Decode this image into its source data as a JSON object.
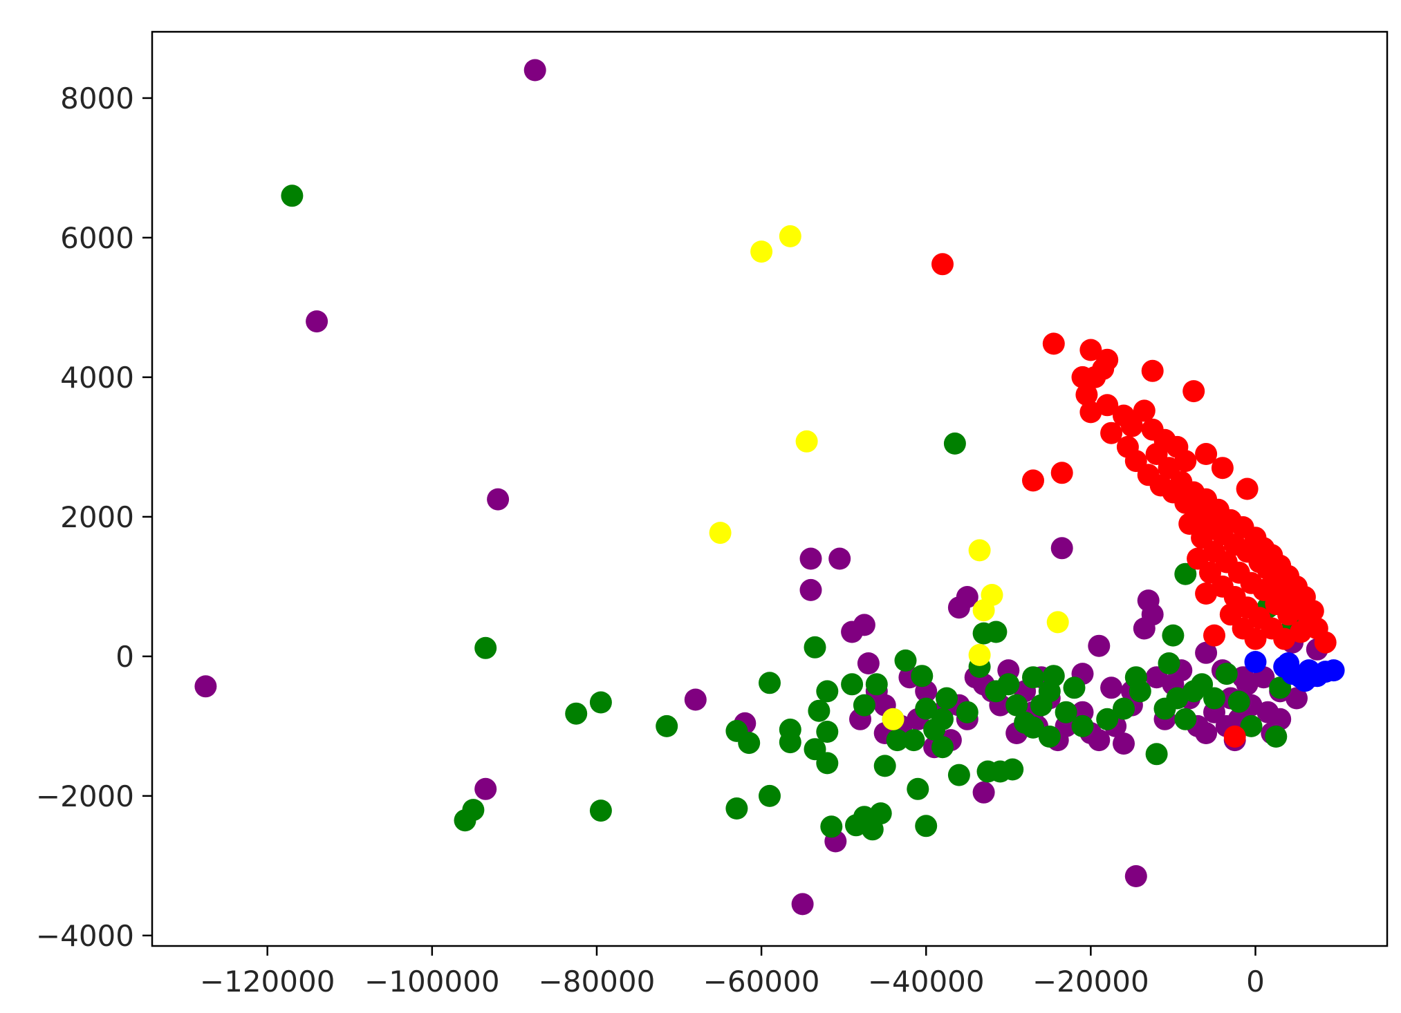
{
  "chart_data": {
    "type": "scatter",
    "title": "",
    "xlabel": "",
    "ylabel": "",
    "xlim": [
      -134000,
      16000
    ],
    "ylim": [
      -4150,
      8950
    ],
    "grid": false,
    "legend": "none",
    "x_ticks": [
      -120000,
      -100000,
      -80000,
      -60000,
      -40000,
      -20000,
      0
    ],
    "x_tick_labels": [
      "−120000",
      "−100000",
      "−80000",
      "−60000",
      "−40000",
      "−20000",
      "0"
    ],
    "y_ticks": [
      -4000,
      -2000,
      0,
      2000,
      4000,
      6000,
      8000
    ],
    "y_tick_labels": [
      "−4000",
      "−2000",
      "0",
      "2000",
      "4000",
      "6000",
      "8000"
    ],
    "series": [
      {
        "color": "#800080",
        "points": [
          [
            -87500,
            8400
          ],
          [
            -114000,
            4800
          ],
          [
            -127500,
            -430
          ],
          [
            -92000,
            2250
          ],
          [
            -93500,
            -1900
          ],
          [
            -54000,
            1400
          ],
          [
            -50500,
            1400
          ],
          [
            -54000,
            950
          ],
          [
            -49000,
            350
          ],
          [
            -47500,
            450
          ],
          [
            -47000,
            -100
          ],
          [
            -68000,
            -620
          ],
          [
            -62000,
            -960
          ],
          [
            -51000,
            -2650
          ],
          [
            -55000,
            -3550
          ],
          [
            -45000,
            -1100
          ],
          [
            -33000,
            -1950
          ],
          [
            -14500,
            -3150
          ],
          [
            -36000,
            700
          ],
          [
            -35000,
            850
          ],
          [
            -23500,
            1550
          ],
          [
            -13000,
            800
          ],
          [
            -12500,
            600
          ],
          [
            -13500,
            400
          ],
          [
            -19000,
            150
          ],
          [
            -21000,
            -250
          ],
          [
            -17500,
            -450
          ],
          [
            -15000,
            -700
          ],
          [
            -11000,
            -900
          ],
          [
            -7000,
            -1000
          ],
          [
            -5000,
            -800
          ],
          [
            -3000,
            -600
          ],
          [
            -1000,
            -400
          ],
          [
            1000,
            -300
          ],
          [
            3000,
            -500
          ],
          [
            5000,
            -600
          ],
          [
            6500,
            -300
          ],
          [
            7500,
            100
          ],
          [
            4500,
            200
          ],
          [
            -2500,
            -1200
          ],
          [
            -25000,
            -600
          ],
          [
            -27000,
            -800
          ],
          [
            -29000,
            -1100
          ],
          [
            -31000,
            -700
          ],
          [
            -33000,
            -400
          ],
          [
            -35000,
            -900
          ],
          [
            -37000,
            -1200
          ],
          [
            -39000,
            -1300
          ],
          [
            -41000,
            -900
          ],
          [
            -43000,
            -1000
          ],
          [
            -45000,
            -700
          ],
          [
            -46000,
            -500
          ],
          [
            -48000,
            -900
          ],
          [
            -23000,
            -1000
          ],
          [
            -21000,
            -800
          ],
          [
            -19000,
            -1200
          ],
          [
            -17000,
            -1000
          ],
          [
            -15000,
            -500
          ],
          [
            -9000,
            -200
          ],
          [
            -6000,
            50
          ],
          [
            -4000,
            -200
          ],
          [
            -2000,
            -900
          ],
          [
            -8000,
            -600
          ],
          [
            -10000,
            -400
          ],
          [
            -12000,
            -300
          ],
          [
            -26000,
            -300
          ],
          [
            -28000,
            -500
          ],
          [
            -30000,
            -200
          ],
          [
            -32000,
            -500
          ],
          [
            -34000,
            -300
          ],
          [
            -36000,
            -700
          ],
          [
            -38000,
            -800
          ],
          [
            -40000,
            -500
          ],
          [
            -42000,
            -300
          ],
          [
            1500,
            -800
          ],
          [
            3000,
            -900
          ],
          [
            2000,
            -1100
          ],
          [
            -1500,
            -300
          ],
          [
            -500,
            -700
          ],
          [
            -3500,
            -1000
          ],
          [
            -6000,
            -1100
          ],
          [
            -16000,
            -1250
          ],
          [
            -20000,
            -1100
          ],
          [
            -24000,
            -1200
          ],
          [
            -26500,
            -1000
          ]
        ]
      },
      {
        "color": "#008000",
        "points": [
          [
            -117000,
            6600
          ],
          [
            -36500,
            3050
          ],
          [
            -93500,
            120
          ],
          [
            -96000,
            -2350
          ],
          [
            -95000,
            -2200
          ],
          [
            -82500,
            -820
          ],
          [
            -79500,
            -660
          ],
          [
            -79500,
            -2210
          ],
          [
            -71500,
            -1000
          ],
          [
            -63000,
            -1070
          ],
          [
            -61500,
            -1240
          ],
          [
            -63000,
            -2180
          ],
          [
            -59000,
            -380
          ],
          [
            -59000,
            -2000
          ],
          [
            -56500,
            -1050
          ],
          [
            -56500,
            -1230
          ],
          [
            -53500,
            130
          ],
          [
            -52000,
            -500
          ],
          [
            -53000,
            -780
          ],
          [
            -52000,
            -1080
          ],
          [
            -53500,
            -1330
          ],
          [
            -52000,
            -1530
          ],
          [
            -51500,
            -2440
          ],
          [
            -48500,
            -2420
          ],
          [
            -47500,
            -2300
          ],
          [
            -46500,
            -2480
          ],
          [
            -45500,
            -2250
          ],
          [
            -45000,
            -1570
          ],
          [
            -49000,
            -400
          ],
          [
            -47500,
            -700
          ],
          [
            -46000,
            -400
          ],
          [
            -44000,
            -900
          ],
          [
            -43500,
            -1200
          ],
          [
            -41000,
            -1900
          ],
          [
            -40000,
            -2430
          ],
          [
            -39000,
            -1050
          ],
          [
            -38000,
            -1300
          ],
          [
            -36000,
            -1700
          ],
          [
            -37500,
            -600
          ],
          [
            -35000,
            -800
          ],
          [
            -41500,
            -1200
          ],
          [
            -42500,
            -60
          ],
          [
            -40500,
            -280
          ],
          [
            -40000,
            -750
          ],
          [
            -38000,
            -900
          ],
          [
            -33000,
            330
          ],
          [
            -31500,
            350
          ],
          [
            -33500,
            -150
          ],
          [
            -31500,
            -500
          ],
          [
            -29000,
            -700
          ],
          [
            -27000,
            -300
          ],
          [
            -25000,
            -500
          ],
          [
            -23000,
            -800
          ],
          [
            -21000,
            -1000
          ],
          [
            -31000,
            -1650
          ],
          [
            -32500,
            -1650
          ],
          [
            -29500,
            -1620
          ],
          [
            -27000,
            -1020
          ],
          [
            -25000,
            -1150
          ],
          [
            -24500,
            -280
          ],
          [
            -8500,
            1180
          ],
          [
            -10000,
            300
          ],
          [
            -10500,
            -100
          ],
          [
            -14500,
            -300
          ],
          [
            -14000,
            -500
          ],
          [
            -12000,
            -1400
          ],
          [
            -11000,
            -750
          ],
          [
            -8500,
            -900
          ],
          [
            -6500,
            -400
          ],
          [
            -5000,
            -600
          ],
          [
            -3500,
            -250
          ],
          [
            -2000,
            -650
          ],
          [
            1500,
            700
          ],
          [
            4500,
            420
          ],
          [
            3000,
            -450
          ],
          [
            2500,
            -1150
          ],
          [
            -500,
            -1000
          ],
          [
            -7500,
            -500
          ],
          [
            -9500,
            -600
          ],
          [
            -16000,
            -750
          ],
          [
            -18000,
            -900
          ],
          [
            -22000,
            -450
          ],
          [
            -26000,
            -700
          ],
          [
            -28000,
            -950
          ],
          [
            -30000,
            -400
          ]
        ]
      },
      {
        "color": "#ffff00",
        "points": [
          [
            -60000,
            5800
          ],
          [
            -56500,
            6020
          ],
          [
            -54500,
            3080
          ],
          [
            -65000,
            1770
          ],
          [
            -33500,
            1520
          ],
          [
            -32000,
            880
          ],
          [
            -33000,
            660
          ],
          [
            -33500,
            20
          ],
          [
            -24000,
            490
          ],
          [
            -44000,
            -900
          ]
        ]
      },
      {
        "color": "#ff0000",
        "points": [
          [
            -38000,
            5620
          ],
          [
            -24500,
            4480
          ],
          [
            -20000,
            4390
          ],
          [
            -18000,
            4250
          ],
          [
            -19500,
            4000
          ],
          [
            -18500,
            4120
          ],
          [
            -12500,
            4090
          ],
          [
            -7500,
            3800
          ],
          [
            -21000,
            4000
          ],
          [
            -20500,
            3750
          ],
          [
            -20000,
            3500
          ],
          [
            -18000,
            3600
          ],
          [
            -17500,
            3200
          ],
          [
            -16000,
            3450
          ],
          [
            -15000,
            3300
          ],
          [
            -13500,
            3520
          ],
          [
            -12500,
            3250
          ],
          [
            -11000,
            3100
          ],
          [
            -9500,
            3000
          ],
          [
            -8500,
            2800
          ],
          [
            -6000,
            2900
          ],
          [
            -4000,
            2700
          ],
          [
            -1000,
            2400
          ],
          [
            -27000,
            2520
          ],
          [
            -23500,
            2630
          ],
          [
            -15500,
            3000
          ],
          [
            -14500,
            2800
          ],
          [
            -13000,
            2600
          ],
          [
            -11500,
            2450
          ],
          [
            -10000,
            2350
          ],
          [
            -8500,
            2200
          ],
          [
            -7000,
            2050
          ],
          [
            -5500,
            1900
          ],
          [
            -4000,
            1750
          ],
          [
            -2500,
            1600
          ],
          [
            -1000,
            1500
          ],
          [
            500,
            1350
          ],
          [
            1500,
            1250
          ],
          [
            2500,
            1100
          ],
          [
            3500,
            950
          ],
          [
            4500,
            850
          ],
          [
            5500,
            700
          ],
          [
            6500,
            550
          ],
          [
            7500,
            400
          ],
          [
            8500,
            200
          ],
          [
            -12000,
            2900
          ],
          [
            -10500,
            2700
          ],
          [
            -9000,
            2500
          ],
          [
            -7500,
            2350
          ],
          [
            -6000,
            2250
          ],
          [
            -4500,
            2100
          ],
          [
            -3000,
            1950
          ],
          [
            -1500,
            1850
          ],
          [
            0,
            1700
          ],
          [
            1000,
            1550
          ],
          [
            2000,
            1450
          ],
          [
            3000,
            1300
          ],
          [
            4000,
            1150
          ],
          [
            5000,
            1000
          ],
          [
            6000,
            850
          ],
          [
            7000,
            650
          ],
          [
            -8000,
            1900
          ],
          [
            -6500,
            1700
          ],
          [
            -5000,
            1500
          ],
          [
            -3500,
            1350
          ],
          [
            -2000,
            1200
          ],
          [
            -500,
            1050
          ],
          [
            1000,
            950
          ],
          [
            2500,
            750
          ],
          [
            4000,
            600
          ],
          [
            5500,
            350
          ],
          [
            -7000,
            1400
          ],
          [
            -5500,
            1200
          ],
          [
            -4000,
            1000
          ],
          [
            -2500,
            850
          ],
          [
            -1000,
            700
          ],
          [
            500,
            550
          ],
          [
            2000,
            400
          ],
          [
            3500,
            250
          ],
          [
            -3000,
            600
          ],
          [
            -1500,
            400
          ],
          [
            0,
            250
          ],
          [
            -2500,
            -1150
          ],
          [
            -5000,
            300
          ],
          [
            -6000,
            900
          ]
        ]
      },
      {
        "color": "#0000ff",
        "points": [
          [
            0,
            -80
          ],
          [
            3500,
            -150
          ],
          [
            4500,
            -250
          ],
          [
            5500,
            -300
          ],
          [
            6500,
            -200
          ],
          [
            7500,
            -280
          ],
          [
            8500,
            -220
          ],
          [
            9500,
            -200
          ],
          [
            4000,
            -100
          ],
          [
            6000,
            -350
          ]
        ]
      }
    ]
  }
}
